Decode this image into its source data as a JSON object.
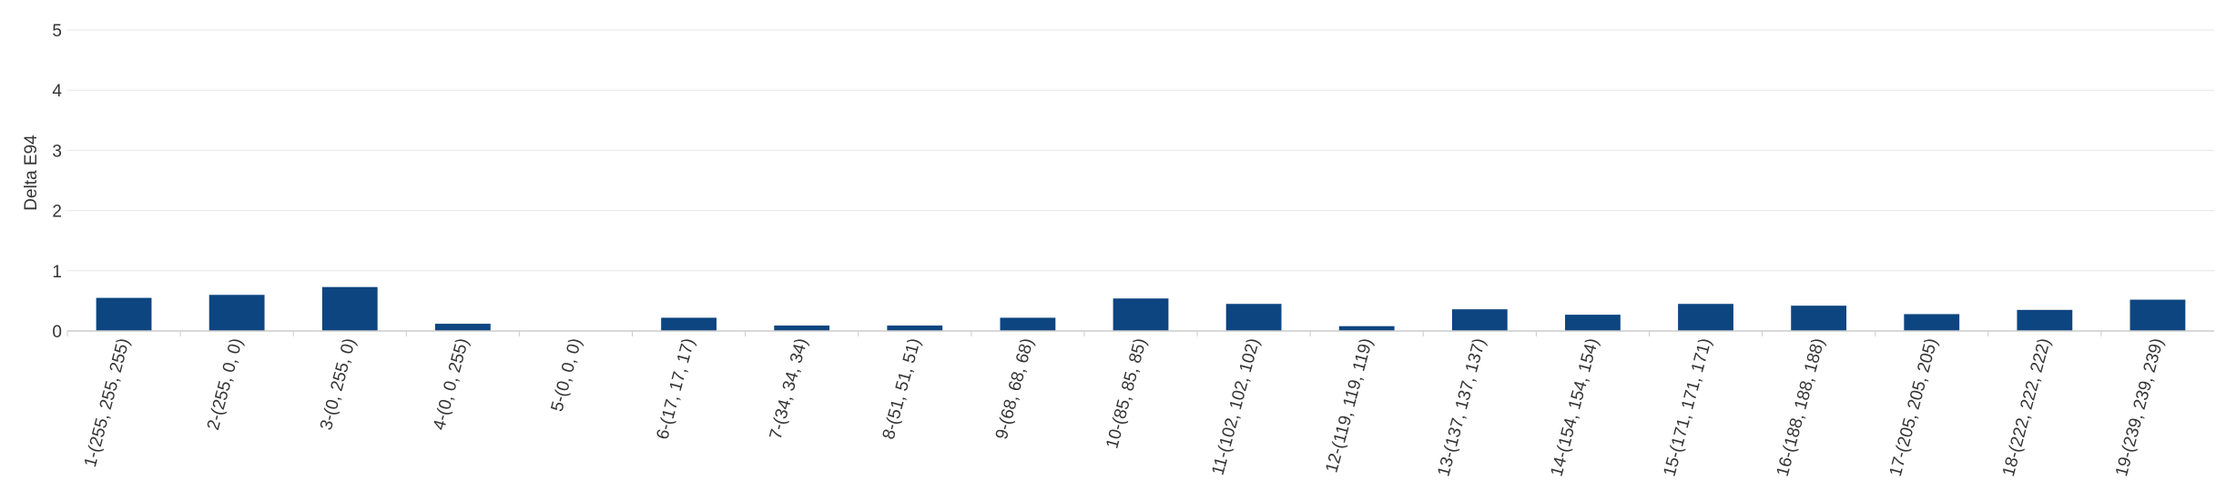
{
  "chart_data": {
    "type": "bar",
    "title": "",
    "xlabel": "",
    "ylabel": "Delta E94",
    "ylim": [
      0,
      5
    ],
    "yticks": [
      0,
      1,
      2,
      3,
      4,
      5
    ],
    "grid": true,
    "bar_color": "#0d4580",
    "grid_color": "#e6e6e6",
    "categories": [
      "1-(255, 255, 255)",
      "2-(255, 0, 0)",
      "3-(0, 255, 0)",
      "4-(0, 0, 255)",
      "5-(0, 0, 0)",
      "6-(17, 17, 17)",
      "7-(34, 34, 34)",
      "8-(51, 51, 51)",
      "9-(68, 68, 68)",
      "10-(85, 85, 85)",
      "11-(102, 102, 102)",
      "12-(119, 119, 119)",
      "13-(137, 137, 137)",
      "14-(154, 154, 154)",
      "15-(171, 171, 171)",
      "16-(188, 188, 188)",
      "17-(205, 205, 205)",
      "18-(222, 222, 222)",
      "19-(239, 239, 239)"
    ],
    "values": [
      0.55,
      0.6,
      0.73,
      0.12,
      0.0,
      0.22,
      0.09,
      0.09,
      0.22,
      0.54,
      0.45,
      0.08,
      0.36,
      0.27,
      0.45,
      0.42,
      0.28,
      0.35,
      0.52
    ]
  }
}
